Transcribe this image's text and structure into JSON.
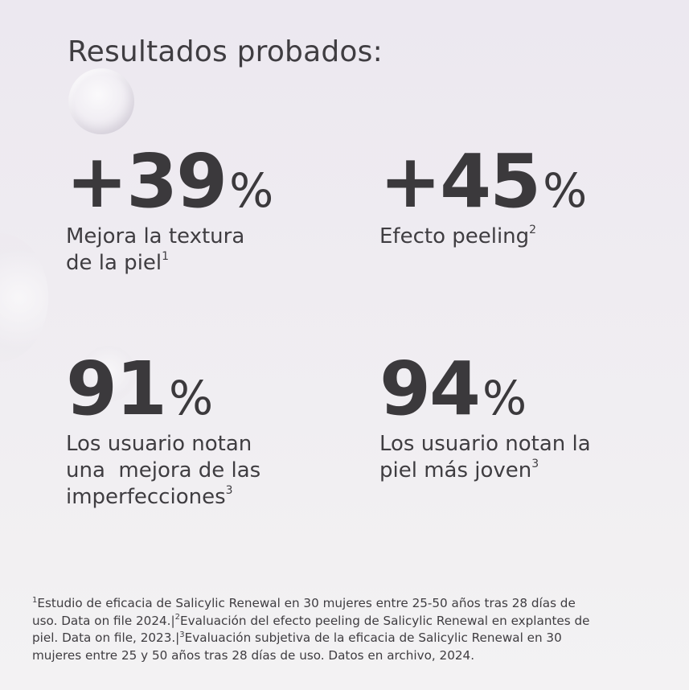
{
  "heading": "Resultados probados:",
  "stats": [
    {
      "number": "+39",
      "percent": "%",
      "label_lines": [
        "Mejora la textura",
        "de la piel"
      ],
      "label_sup": "1"
    },
    {
      "number": "+45",
      "percent": "%",
      "label_lines": [
        "Efecto peeling"
      ],
      "label_sup": "2"
    },
    {
      "number": "91",
      "percent": "%",
      "label_lines": [
        "Los usuario notan",
        "una  mejora de las",
        "imperfecciones"
      ],
      "label_sup": "3"
    },
    {
      "number": "94",
      "percent": "%",
      "label_lines": [
        "Los usuario notan la",
        "piel más joven"
      ],
      "label_sup": "3"
    }
  ],
  "footnote": {
    "sup1": "1",
    "line1": "Estudio de eficacia de Salicylic Renewal en 30 mujeres entre 25-50 años tras 28 días de",
    "line2a": "uso. Data on file 2024.|",
    "sup2": "2",
    "line2b": "Evaluación del efecto peeling de Salicylic Renewal en explantes de",
    "line3a": "piel. Data on file, 2023.|",
    "sup3": "3",
    "line3b": "Evaluación subjetiva de la eficacia de Salicylic Renewal en 30",
    "line4": "mujeres entre 25 y 50 años tras 28 días de uso. Datos en archivo, 2024."
  }
}
